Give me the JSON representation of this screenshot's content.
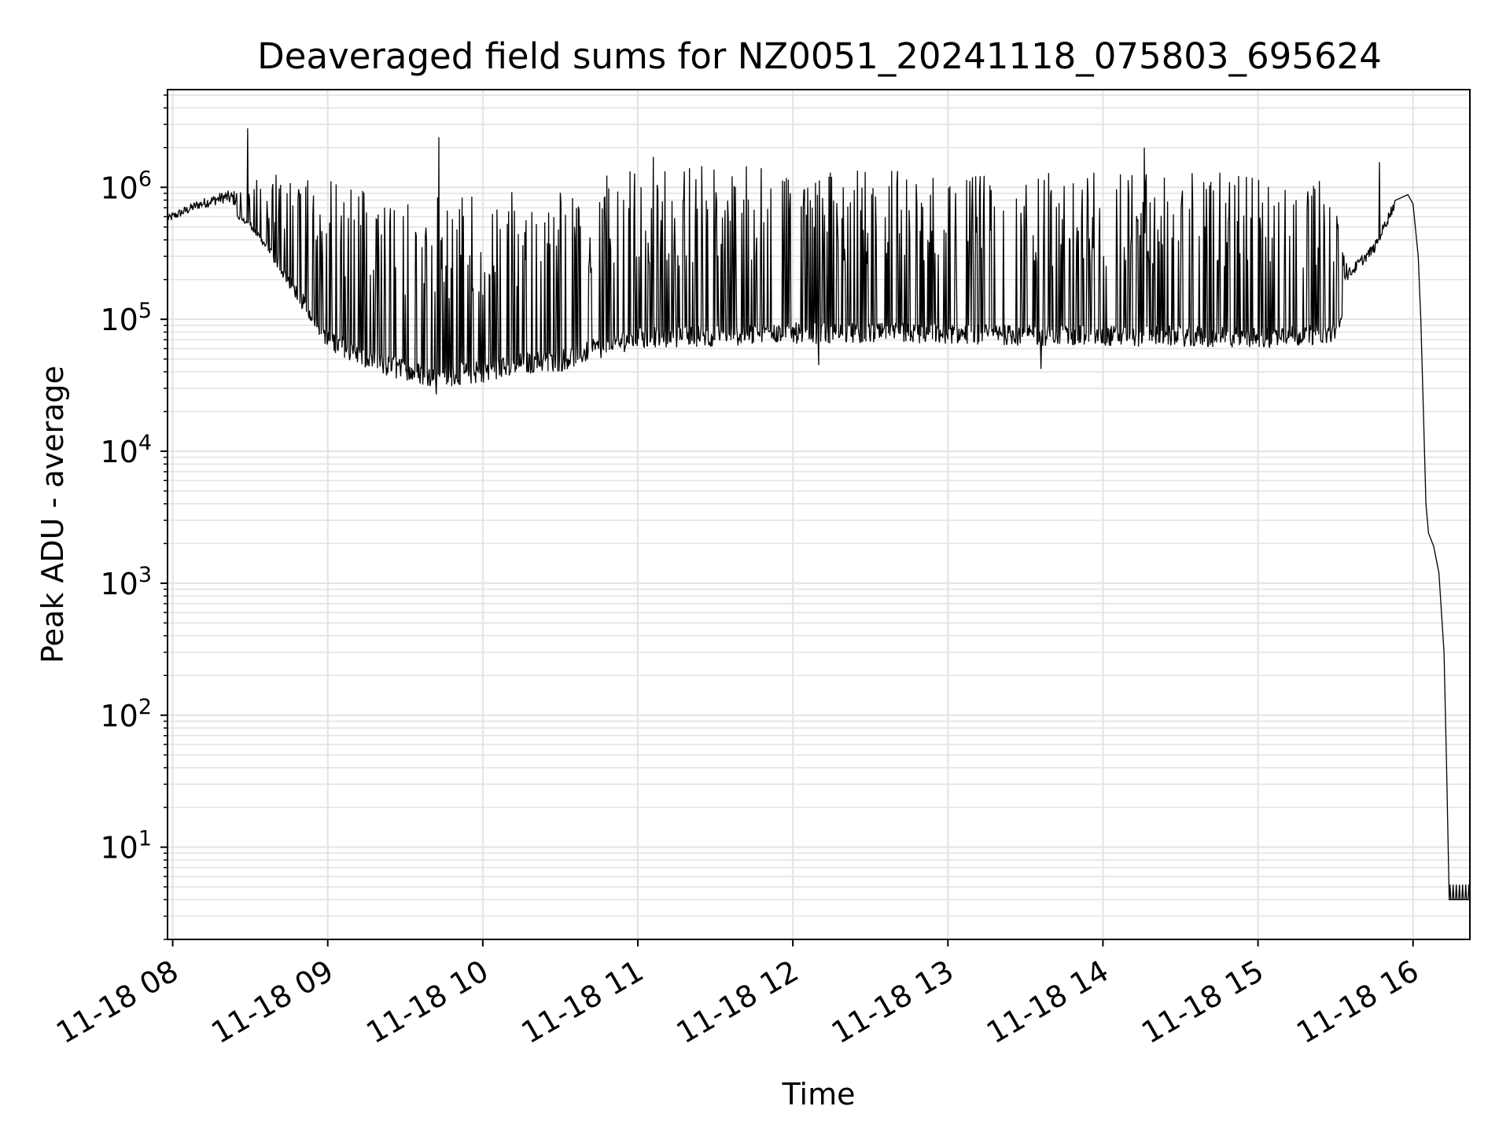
{
  "chart_data": {
    "type": "line",
    "title": "Deaveraged field sums for NZ0051_20241118_075803_695624",
    "xlabel": "Time",
    "ylabel": "Peak ADU - average",
    "yscale": "log",
    "xlim": [
      "2024-11-18 07:58",
      "2024-11-18 16:22"
    ],
    "ylim": [
      2,
      5500000
    ],
    "grid": true,
    "x_ticks": [
      {
        "value": "2024-11-18 08:00",
        "label": "11-18 08"
      },
      {
        "value": "2024-11-18 09:00",
        "label": "11-18 09"
      },
      {
        "value": "2024-11-18 10:00",
        "label": "11-18 10"
      },
      {
        "value": "2024-11-18 11:00",
        "label": "11-18 11"
      },
      {
        "value": "2024-11-18 12:00",
        "label": "11-18 12"
      },
      {
        "value": "2024-11-18 13:00",
        "label": "11-18 13"
      },
      {
        "value": "2024-11-18 14:00",
        "label": "11-18 14"
      },
      {
        "value": "2024-11-18 15:00",
        "label": "11-18 15"
      },
      {
        "value": "2024-11-18 16:00",
        "label": "11-18 16"
      }
    ],
    "y_ticks": [
      {
        "value": 10,
        "base": "10",
        "exp": "1"
      },
      {
        "value": 100,
        "base": "10",
        "exp": "2"
      },
      {
        "value": 1000,
        "base": "10",
        "exp": "3"
      },
      {
        "value": 10000,
        "base": "10",
        "exp": "4"
      },
      {
        "value": 100000,
        "base": "10",
        "exp": "5"
      },
      {
        "value": 1000000,
        "base": "10",
        "exp": "6"
      }
    ],
    "series": [
      {
        "color": "#000000",
        "note_points": "envelope samples (time, low, high)",
        "envelope": [
          {
            "t": "2024-11-18 07:58",
            "low": 480000,
            "high": 650000
          },
          {
            "t": "2024-11-18 08:10",
            "low": 600000,
            "high": 850000
          },
          {
            "t": "2024-11-18 08:20",
            "low": 650000,
            "high": 1000000
          },
          {
            "t": "2024-11-18 08:30",
            "low": 500000,
            "high": 1100000
          },
          {
            "t": "2024-11-18 08:40",
            "low": 250000,
            "high": 1300000
          },
          {
            "t": "2024-11-18 08:50",
            "low": 120000,
            "high": 1400000
          },
          {
            "t": "2024-11-18 09:00",
            "low": 60000,
            "high": 1300000
          },
          {
            "t": "2024-11-18 09:15",
            "low": 40000,
            "high": 1100000
          },
          {
            "t": "2024-11-18 09:30",
            "low": 33000,
            "high": 1000000
          },
          {
            "t": "2024-11-18 09:45",
            "low": 30000,
            "high": 900000
          },
          {
            "t": "2024-11-18 10:00",
            "low": 33000,
            "high": 900000
          },
          {
            "t": "2024-11-18 10:15",
            "low": 38000,
            "high": 1000000
          },
          {
            "t": "2024-11-18 10:30",
            "low": 40000,
            "high": 1100000
          },
          {
            "t": "2024-11-18 10:45",
            "low": 50000,
            "high": 1200000
          },
          {
            "t": "2024-11-18 11:00",
            "low": 60000,
            "high": 1400000
          },
          {
            "t": "2024-11-18 11:30",
            "low": 62000,
            "high": 1500000
          },
          {
            "t": "2024-11-18 12:00",
            "low": 65000,
            "high": 1500000
          },
          {
            "t": "2024-11-18 12:30",
            "low": 65000,
            "high": 1400000
          },
          {
            "t": "2024-11-18 13:00",
            "low": 65000,
            "high": 1300000
          },
          {
            "t": "2024-11-18 13:30",
            "low": 63000,
            "high": 1300000
          },
          {
            "t": "2024-11-18 14:00",
            "low": 62000,
            "high": 1400000
          },
          {
            "t": "2024-11-18 14:30",
            "low": 62000,
            "high": 1300000
          },
          {
            "t": "2024-11-18 15:00",
            "low": 60000,
            "high": 1300000
          },
          {
            "t": "2024-11-18 15:30",
            "low": 65000,
            "high": 1300000
          },
          {
            "t": "2024-11-18 15:35",
            "low": 170000,
            "high": 260000
          },
          {
            "t": "2024-11-18 15:45",
            "low": 280000,
            "high": 400000
          },
          {
            "t": "2024-11-18 15:53",
            "low": 600000,
            "high": 900000
          }
        ],
        "spikes": [
          {
            "t": "2024-11-18 08:29",
            "value": 2800000
          },
          {
            "t": "2024-11-18 09:43",
            "value": 2400000
          },
          {
            "t": "2024-11-18 11:06",
            "value": 1700000
          },
          {
            "t": "2024-11-18 14:16",
            "value": 2000000
          },
          {
            "t": "2024-11-18 15:47",
            "value": 1550000
          }
        ],
        "dips": [
          {
            "t": "2024-11-18 09:42",
            "value": 27000
          },
          {
            "t": "2024-11-18 13:36",
            "value": 42000
          },
          {
            "t": "2024-11-18 12:10",
            "value": 45000
          }
        ],
        "decay": [
          {
            "t": "2024-11-18 15:58",
            "value": 880000
          },
          {
            "t": "2024-11-18 16:00",
            "value": 750000
          },
          {
            "t": "2024-11-18 16:02",
            "value": 300000
          },
          {
            "t": "2024-11-18 16:03",
            "value": 100000
          },
          {
            "t": "2024-11-18 16:04",
            "value": 20000
          },
          {
            "t": "2024-11-18 16:05",
            "value": 4000
          },
          {
            "t": "2024-11-18 16:06",
            "value": 2400
          },
          {
            "t": "2024-11-18 16:08",
            "value": 1900
          },
          {
            "t": "2024-11-18 16:10",
            "value": 1200
          },
          {
            "t": "2024-11-18 16:12",
            "value": 300
          },
          {
            "t": "2024-11-18 16:13",
            "value": 40
          },
          {
            "t": "2024-11-18 16:14",
            "value": 4
          },
          {
            "t": "2024-11-18 16:22",
            "value": 4
          }
        ]
      }
    ]
  }
}
